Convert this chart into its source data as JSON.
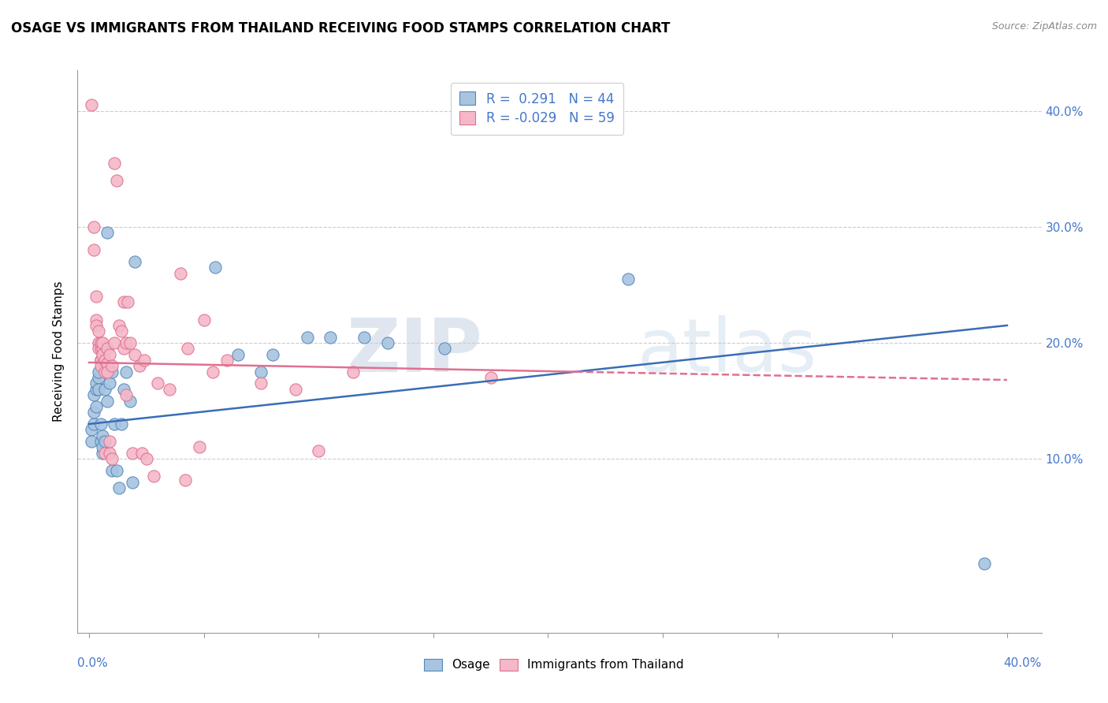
{
  "title": "OSAGE VS IMMIGRANTS FROM THAILAND RECEIVING FOOD STAMPS CORRELATION CHART",
  "source": "Source: ZipAtlas.com",
  "ylabel": "Receiving Food Stamps",
  "y_ticks": [
    0.1,
    0.2,
    0.3,
    0.4
  ],
  "x_tick_positions": [
    0.0,
    0.05,
    0.1,
    0.15,
    0.2,
    0.25,
    0.3,
    0.35,
    0.4
  ],
  "xlim": [
    -0.005,
    0.415
  ],
  "ylim": [
    -0.05,
    0.435
  ],
  "legend_r_blue": "R =  0.291   N = 44",
  "legend_r_pink": "R = -0.029   N = 59",
  "blue_scatter": [
    [
      0.001,
      0.125
    ],
    [
      0.001,
      0.115
    ],
    [
      0.002,
      0.13
    ],
    [
      0.002,
      0.14
    ],
    [
      0.002,
      0.155
    ],
    [
      0.003,
      0.16
    ],
    [
      0.003,
      0.145
    ],
    [
      0.003,
      0.165
    ],
    [
      0.004,
      0.17
    ],
    [
      0.004,
      0.175
    ],
    [
      0.004,
      0.16
    ],
    [
      0.005,
      0.185
    ],
    [
      0.005,
      0.13
    ],
    [
      0.005,
      0.115
    ],
    [
      0.006,
      0.105
    ],
    [
      0.006,
      0.12
    ],
    [
      0.006,
      0.11
    ],
    [
      0.007,
      0.16
    ],
    [
      0.007,
      0.115
    ],
    [
      0.008,
      0.295
    ],
    [
      0.008,
      0.15
    ],
    [
      0.009,
      0.165
    ],
    [
      0.01,
      0.175
    ],
    [
      0.01,
      0.09
    ],
    [
      0.011,
      0.13
    ],
    [
      0.012,
      0.09
    ],
    [
      0.013,
      0.075
    ],
    [
      0.014,
      0.13
    ],
    [
      0.015,
      0.16
    ],
    [
      0.016,
      0.175
    ],
    [
      0.018,
      0.15
    ],
    [
      0.019,
      0.08
    ],
    [
      0.02,
      0.27
    ],
    [
      0.055,
      0.265
    ],
    [
      0.065,
      0.19
    ],
    [
      0.075,
      0.175
    ],
    [
      0.08,
      0.19
    ],
    [
      0.095,
      0.205
    ],
    [
      0.105,
      0.205
    ],
    [
      0.12,
      0.205
    ],
    [
      0.13,
      0.2
    ],
    [
      0.155,
      0.195
    ],
    [
      0.235,
      0.255
    ],
    [
      0.39,
      0.01
    ]
  ],
  "pink_scatter": [
    [
      0.001,
      0.405
    ],
    [
      0.002,
      0.28
    ],
    [
      0.002,
      0.3
    ],
    [
      0.003,
      0.22
    ],
    [
      0.003,
      0.24
    ],
    [
      0.003,
      0.215
    ],
    [
      0.004,
      0.2
    ],
    [
      0.004,
      0.21
    ],
    [
      0.004,
      0.195
    ],
    [
      0.005,
      0.195
    ],
    [
      0.005,
      0.185
    ],
    [
      0.005,
      0.2
    ],
    [
      0.005,
      0.18
    ],
    [
      0.006,
      0.195
    ],
    [
      0.006,
      0.19
    ],
    [
      0.006,
      0.2
    ],
    [
      0.007,
      0.175
    ],
    [
      0.007,
      0.185
    ],
    [
      0.007,
      0.105
    ],
    [
      0.008,
      0.195
    ],
    [
      0.008,
      0.182
    ],
    [
      0.008,
      0.175
    ],
    [
      0.009,
      0.105
    ],
    [
      0.009,
      0.115
    ],
    [
      0.009,
      0.19
    ],
    [
      0.01,
      0.18
    ],
    [
      0.01,
      0.1
    ],
    [
      0.011,
      0.2
    ],
    [
      0.011,
      0.355
    ],
    [
      0.012,
      0.34
    ],
    [
      0.013,
      0.215
    ],
    [
      0.014,
      0.21
    ],
    [
      0.015,
      0.235
    ],
    [
      0.015,
      0.195
    ],
    [
      0.016,
      0.155
    ],
    [
      0.016,
      0.2
    ],
    [
      0.017,
      0.235
    ],
    [
      0.018,
      0.2
    ],
    [
      0.019,
      0.105
    ],
    [
      0.02,
      0.19
    ],
    [
      0.022,
      0.18
    ],
    [
      0.023,
      0.105
    ],
    [
      0.024,
      0.185
    ],
    [
      0.025,
      0.1
    ],
    [
      0.028,
      0.085
    ],
    [
      0.03,
      0.165
    ],
    [
      0.035,
      0.16
    ],
    [
      0.04,
      0.26
    ],
    [
      0.042,
      0.082
    ],
    [
      0.043,
      0.195
    ],
    [
      0.048,
      0.11
    ],
    [
      0.05,
      0.22
    ],
    [
      0.054,
      0.175
    ],
    [
      0.06,
      0.185
    ],
    [
      0.075,
      0.165
    ],
    [
      0.09,
      0.16
    ],
    [
      0.1,
      0.107
    ],
    [
      0.115,
      0.175
    ],
    [
      0.175,
      0.17
    ]
  ],
  "blue_trend_x": [
    0.0,
    0.4
  ],
  "blue_trend_y": [
    0.13,
    0.215
  ],
  "pink_trend_x": [
    0.0,
    0.4
  ],
  "pink_trend_y": [
    0.183,
    0.168
  ],
  "blue_scatter_color": "#a8c4e0",
  "blue_scatter_edge": "#5588bb",
  "pink_scatter_color": "#f4b8c8",
  "pink_scatter_edge": "#e07090",
  "blue_line_color": "#3a6db5",
  "pink_line_color": "#e07090",
  "watermark_color": "#c8d8e8",
  "background_color": "#ffffff",
  "grid_color": "#cccccc"
}
